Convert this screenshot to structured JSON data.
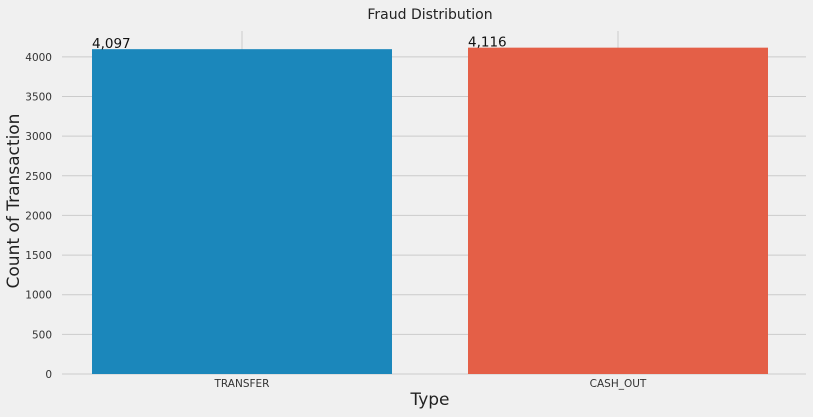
{
  "chart_data": {
    "type": "bar",
    "title": "Fraud Distribution",
    "xlabel": "Type",
    "ylabel": "Count of Transaction",
    "categories": [
      "TRANSFER",
      "CASH_OUT"
    ],
    "values": [
      4097,
      4116
    ],
    "data_labels": [
      "4,097",
      "4,116"
    ],
    "colors": [
      "#1b87bb",
      "#e45f47"
    ],
    "ylim": [
      0,
      4200
    ],
    "yticks": [
      0,
      500,
      1000,
      1500,
      2000,
      2500,
      3000,
      3500,
      4000
    ],
    "grid": true,
    "legend": "none",
    "background": "#f0f0f0",
    "grid_color": "#cbcbcb"
  }
}
